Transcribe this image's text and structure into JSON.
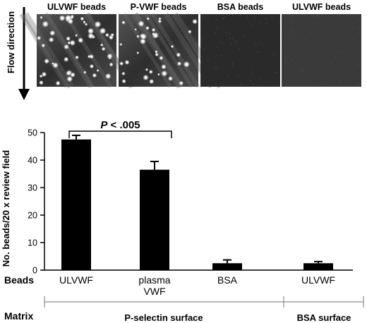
{
  "panels": {
    "flow_direction": "Flow direction",
    "images": [
      {
        "label": "ULVWF beads",
        "bead_density": "high"
      },
      {
        "label": "P-VWF beads",
        "bead_density": "medium"
      },
      {
        "label": "BSA beads",
        "bead_density": "none"
      },
      {
        "label": "ULVWF beads",
        "bead_density": "none"
      }
    ]
  },
  "chart_data": {
    "type": "bar",
    "categories": [
      "ULVWF",
      "plasma VWF",
      "BSA",
      "ULVWF"
    ],
    "values": [
      47.5,
      36.5,
      2.5,
      2.5
    ],
    "errors": [
      1.5,
      3.0,
      1.2,
      0.6
    ],
    "ylabel": "No. beads/20 x review field",
    "ylim": [
      0,
      50
    ],
    "yticks": [
      0,
      10,
      20,
      30,
      40,
      50
    ],
    "bar_color": "#000000",
    "grid": false,
    "annotation": {
      "text": "P < .005",
      "italic_part": "P",
      "from": 0,
      "to": 1
    },
    "row_labels": {
      "beads": "Beads",
      "matrix": "Matrix"
    },
    "category_lines": [
      [
        "ULVWF"
      ],
      [
        "plasma",
        "VWF"
      ],
      [
        "BSA"
      ],
      [
        "ULVWF"
      ]
    ],
    "matrix_groups": [
      {
        "label": "P-selectin surface",
        "categories": [
          0,
          1,
          2
        ]
      },
      {
        "label": "BSA surface",
        "categories": [
          3
        ]
      }
    ]
  }
}
